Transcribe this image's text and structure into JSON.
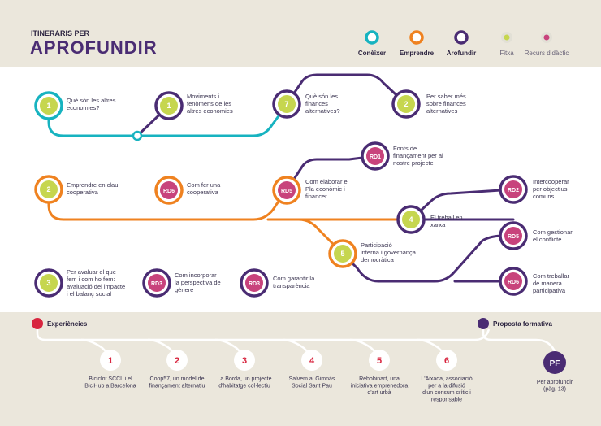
{
  "header": {
    "kicker": "ITINERARIS PER",
    "title": "APROFUNDIR",
    "legend": [
      {
        "label": "Conèixer",
        "color": "#17b3c0",
        "icon": "ring-cyan-icon"
      },
      {
        "label": "Emprendre",
        "color": "#ef8220",
        "icon": "ring-orange-icon"
      },
      {
        "label": "Arofundir",
        "color": "#4a2c73",
        "icon": "ring-purple-icon"
      },
      {
        "label": "Fitxa",
        "color": "#c6d64f",
        "icon": "fitxa-dot-icon"
      },
      {
        "label": "Recurs didàctic",
        "color": "#c8437c",
        "icon": "recurs-dot-icon"
      }
    ]
  },
  "nodes": [
    {
      "badge": "1",
      "text": [
        "Què són les altres",
        "economies?"
      ]
    },
    {
      "badge": "1",
      "text": [
        "Moviments i",
        "fenòmens de les",
        "altres economies"
      ]
    },
    {
      "badge": "7",
      "text": [
        "Què són les",
        "finances",
        "alternatives?"
      ]
    },
    {
      "badge": "2",
      "text": [
        "Per saber més",
        "sobre finances",
        "alternatives"
      ]
    },
    {
      "badge": "RD1",
      "text": [
        "Fonts de",
        "finançament per al",
        "nostre projecte"
      ]
    },
    {
      "badge": "2",
      "text": [
        "Emprendre en clau",
        "cooperativa"
      ]
    },
    {
      "badge": "RD6",
      "text": [
        "Com fer una",
        "cooperativa"
      ]
    },
    {
      "badge": "RD5",
      "text": [
        "Com elaborar el",
        "Pla econòmic i",
        "financer"
      ]
    },
    {
      "badge": "RD2",
      "text": [
        "Intercooperar",
        "per objectius",
        "comuns"
      ]
    },
    {
      "badge": "4",
      "text": [
        "El treball en",
        "xarxa"
      ]
    },
    {
      "badge": "RD5",
      "text": [
        "Com gestionar",
        "el conflicte"
      ]
    },
    {
      "badge": "5",
      "text": [
        "Participació",
        "interna i governança",
        "democràtica"
      ]
    },
    {
      "badge": "RD6",
      "text": [
        "Com treballar",
        "de manera",
        "participativa"
      ]
    },
    {
      "badge": "3",
      "text": [
        "Per avaluar el que",
        "fem i com ho fem:",
        "avaluació del impacte",
        "i el balanç social"
      ]
    },
    {
      "badge": "RD3",
      "text": [
        "Com incorporar",
        "la perspectiva de",
        "gènere"
      ]
    },
    {
      "badge": "RD3",
      "text": [
        "Com garantir la",
        "transparència"
      ]
    }
  ],
  "bottom": {
    "experiences_label": "Experiències",
    "proposal_label": "Proposta formativa",
    "experiences": [
      {
        "num": "1",
        "text": [
          "Biciclot SCCL i el",
          "BiciHub a Barcelona"
        ]
      },
      {
        "num": "2",
        "text": [
          "Coop57, un model de",
          "finançament alternatiu"
        ]
      },
      {
        "num": "3",
        "text": [
          "La Borda, un projecte",
          "d'habitatge col·lectiu"
        ]
      },
      {
        "num": "4",
        "text": [
          "Salvem al Gimnàs",
          "Social Sant Pau"
        ]
      },
      {
        "num": "5",
        "text": [
          "Rebobinart, una",
          "iniciativa emprenedora",
          "d'art urbà"
        ]
      },
      {
        "num": "6",
        "text": [
          "L'Aixada, associació",
          "per a la difusió",
          "d'un consum crític i",
          "responsable"
        ]
      }
    ],
    "proposal": {
      "badge": "PF",
      "text": [
        "Per aprofundir",
        "(pàg. 13)"
      ]
    }
  }
}
